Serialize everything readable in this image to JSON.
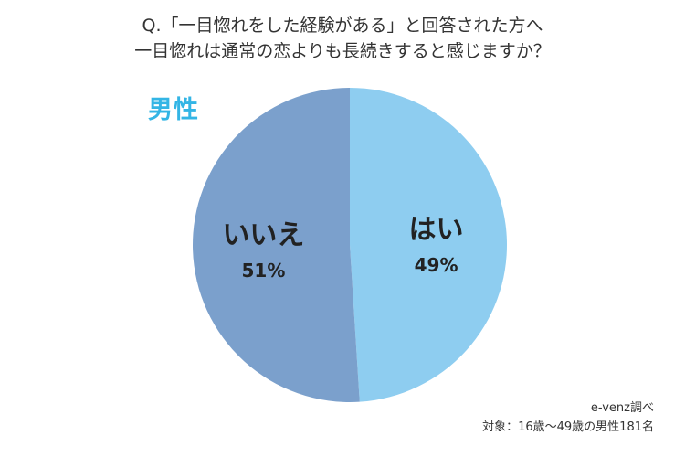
{
  "question": {
    "line1": "Q.「一目惚れをした経験がある」と回答された方へ",
    "line2": "一目惚れは通常の恋よりも長続きすると感じますか？"
  },
  "group_label": "男性",
  "footer": {
    "source": "e-venz調べ",
    "sample": "対象：16歳〜49歳の男性181名"
  },
  "colors": {
    "title": "#333333",
    "group_label": "#33b5e5",
    "yes": "#8ecdf0",
    "no": "#7ba0cc",
    "label_text": "#222222"
  },
  "chart_data": {
    "type": "pie",
    "title": "",
    "slices": [
      {
        "label": "はい",
        "value": 49,
        "value_label": "49%",
        "color": "#8ecdf0"
      },
      {
        "label": "いいえ",
        "value": 51,
        "value_label": "51%",
        "color": "#7ba0cc"
      }
    ],
    "start_angle_deg": 0,
    "direction": "clockwise",
    "legend": "none"
  }
}
